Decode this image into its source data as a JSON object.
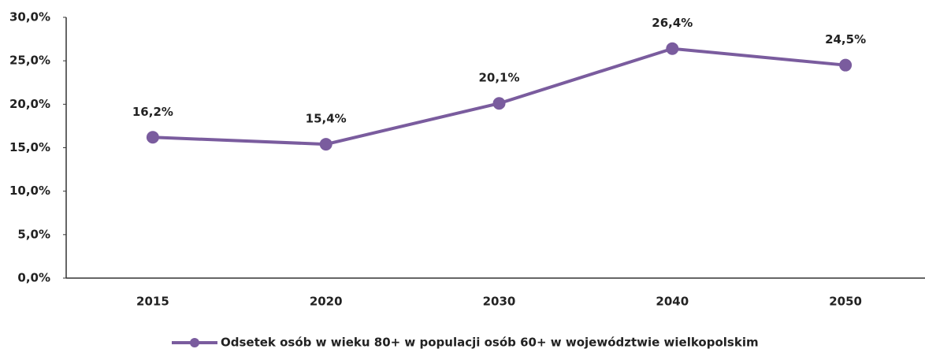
{
  "chart_data": {
    "type": "line",
    "categories": [
      "2015",
      "2020",
      "2030",
      "2040",
      "2050"
    ],
    "series": [
      {
        "name": "Odsetek osób w wieku 80+ w populacji osób 60+ w województwie wielkopolskim",
        "color": "#7a5c9e",
        "values": [
          16.2,
          15.4,
          20.1,
          26.4,
          24.5
        ],
        "value_labels": [
          "16,2%",
          "15,4%",
          "20,1%",
          "26,4%",
          "24,5%"
        ]
      }
    ],
    "ylim": [
      0,
      30
    ],
    "yticks": [
      {
        "value": 0,
        "label": "0,0%"
      },
      {
        "value": 5,
        "label": "5,0%"
      },
      {
        "value": 10,
        "label": "10,0%"
      },
      {
        "value": 15,
        "label": "15,0%"
      },
      {
        "value": 20,
        "label": "20,0%"
      },
      {
        "value": 25,
        "label": "25,0%"
      },
      {
        "value": 30,
        "label": "30,0%"
      }
    ],
    "grid": false,
    "legend": "bottom"
  }
}
